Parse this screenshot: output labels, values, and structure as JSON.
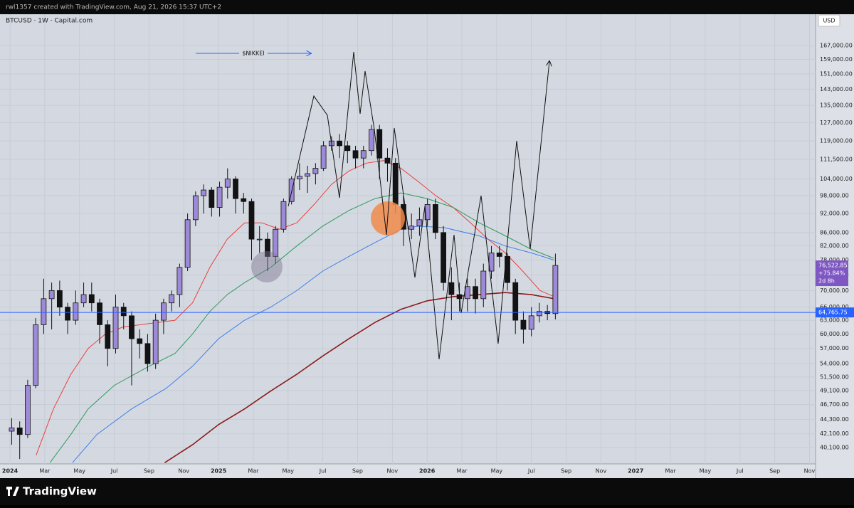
{
  "header": {
    "credit": "rwl1357 created with TradingView.com, Aug 21, 2026 15:37 UTC+2",
    "brand": "TradingView"
  },
  "chart_data": {
    "type": "candlestick",
    "title": "BTCUSD · 1W · Capital.com",
    "currency": "USD",
    "annotation": "$NIKKEI",
    "log_scale": true,
    "grid": true,
    "up_color": "#9d88da",
    "down_color": "#131313",
    "xlim": [
      -0.574,
      46.35
    ],
    "ylim": [
      37840,
      186600
    ],
    "xticks": [
      {
        "value": 0,
        "label": "2024"
      },
      {
        "value": 2,
        "label": "Mar"
      },
      {
        "value": 4,
        "label": "May"
      },
      {
        "value": 6,
        "label": "Jul"
      },
      {
        "value": 8,
        "label": "Sep"
      },
      {
        "value": 10,
        "label": "Nov"
      },
      {
        "value": 12,
        "label": "2025"
      },
      {
        "value": 14,
        "label": "Mar"
      },
      {
        "value": 16,
        "label": "May"
      },
      {
        "value": 18,
        "label": "Jul"
      },
      {
        "value": 20,
        "label": "Sep"
      },
      {
        "value": 22,
        "label": "Nov"
      },
      {
        "value": 24,
        "label": "2026"
      },
      {
        "value": 26,
        "label": "Mar"
      },
      {
        "value": 28,
        "label": "May"
      },
      {
        "value": 30,
        "label": "Jul"
      },
      {
        "value": 32,
        "label": "Sep"
      },
      {
        "value": 34,
        "label": "Nov"
      },
      {
        "value": 36,
        "label": "2027"
      },
      {
        "value": 38,
        "label": "Mar"
      },
      {
        "value": 40,
        "label": "May"
      },
      {
        "value": 42,
        "label": "Jul"
      },
      {
        "value": 44,
        "label": "Sep"
      },
      {
        "value": 46,
        "label": "Nov"
      }
    ],
    "yticks": [
      {
        "value": 40100,
        "label": "40,100.00"
      },
      {
        "value": 42100,
        "label": "42,100.00"
      },
      {
        "value": 44300,
        "label": "44,300.00"
      },
      {
        "value": 46700,
        "label": "46,700.00"
      },
      {
        "value": 49100,
        "label": "49,100.00"
      },
      {
        "value": 51500,
        "label": "51,500.00"
      },
      {
        "value": 54000,
        "label": "54,000.00"
      },
      {
        "value": 57000,
        "label": "57,000.00"
      },
      {
        "value": 60000,
        "label": "60,000.00"
      },
      {
        "value": 63000,
        "label": "63,000.00"
      },
      {
        "value": 66000,
        "label": "66,000.00"
      },
      {
        "value": 70000,
        "label": "70,000.00"
      },
      {
        "value": 74000,
        "label": "74,000.00"
      },
      {
        "value": 78000,
        "label": "78,000.00"
      },
      {
        "value": 82000,
        "label": "82,000.00"
      },
      {
        "value": 86000,
        "label": "86,000.00"
      },
      {
        "value": 92000,
        "label": "92,000.00"
      },
      {
        "value": 98000,
        "label": "98,000.00"
      },
      {
        "value": 104000,
        "label": "104,000.00"
      },
      {
        "value": 111500,
        "label": "111,500.00"
      },
      {
        "value": 119000,
        "label": "119,000.00"
      },
      {
        "value": 127000,
        "label": "127,000.00"
      },
      {
        "value": 135000,
        "label": "135,000.00"
      },
      {
        "value": 143000,
        "label": "143,000.00"
      },
      {
        "value": 151000,
        "label": "151,000.00"
      },
      {
        "value": 159000,
        "label": "159,000.00"
      },
      {
        "value": 167000,
        "label": "167,000.00"
      }
    ],
    "x": [
      0.1,
      0.56,
      1.02,
      1.48,
      1.94,
      2.4,
      2.86,
      3.32,
      3.78,
      4.24,
      4.7,
      5.16,
      5.62,
      6.08,
      6.54,
      7,
      7.46,
      7.92,
      8.38,
      8.84,
      9.3,
      9.76,
      10.22,
      10.68,
      11.14,
      11.6,
      12.06,
      12.52,
      12.98,
      13.44,
      13.9,
      14.36,
      14.82,
      15.28,
      15.74,
      16.2,
      16.66,
      17.12,
      17.58,
      18.04,
      18.5,
      18.96,
      19.42,
      19.88,
      20.34,
      20.8,
      21.26,
      21.72,
      22.18,
      22.64,
      23.1,
      23.56,
      24.02,
      24.48,
      24.94,
      25.4,
      25.86,
      26.32,
      26.78,
      27.24,
      27.7,
      28.16,
      28.62,
      29.08,
      29.54,
      30,
      30.46,
      30.92,
      31.38
    ],
    "open": [
      42500,
      43000,
      42000,
      50000,
      62000,
      68000,
      70000,
      66000,
      63000,
      67000,
      69000,
      67000,
      62000,
      57000,
      66000,
      64000,
      59000,
      58000,
      54000,
      63000,
      67000,
      69000,
      76000,
      90000,
      98000,
      100000,
      94000,
      101000,
      104000,
      97000,
      96000,
      84000,
      84000,
      79000,
      87000,
      96000,
      104000,
      105000,
      106000,
      108000,
      117000,
      119000,
      117000,
      115000,
      112000,
      115000,
      124000,
      112000,
      110000,
      95000,
      87000,
      88000,
      90000,
      95000,
      86000,
      72000,
      69000,
      68000,
      71000,
      68000,
      75000,
      80000,
      79000,
      72000,
      63000,
      61000,
      64000,
      65000,
      64500
    ],
    "high": [
      44500,
      44000,
      51000,
      63500,
      73000,
      72000,
      72500,
      67000,
      70000,
      72000,
      72000,
      68000,
      63000,
      69000,
      67000,
      65000,
      61000,
      60000,
      64500,
      68000,
      70000,
      77000,
      92000,
      99500,
      102000,
      101000,
      103000,
      108000,
      105000,
      99000,
      97000,
      88000,
      86000,
      88000,
      97000,
      105000,
      110000,
      109000,
      110000,
      119000,
      121000,
      122000,
      119000,
      117000,
      117000,
      126000,
      126000,
      116000,
      112000,
      98000,
      92000,
      94000,
      97000,
      97000,
      88000,
      76000,
      72000,
      73000,
      73000,
      77000,
      82000,
      82000,
      80000,
      73000,
      65000,
      66000,
      67000,
      66500,
      79800
    ],
    "low": [
      40500,
      38500,
      41500,
      49500,
      60000,
      61000,
      64000,
      60000,
      62000,
      66000,
      65000,
      58000,
      53500,
      56000,
      61000,
      50000,
      55000,
      52500,
      53000,
      60000,
      65000,
      66000,
      75000,
      88000,
      92000,
      91000,
      91000,
      97000,
      92000,
      92000,
      78000,
      80000,
      75000,
      77000,
      86000,
      95000,
      100000,
      99000,
      102000,
      107000,
      115000,
      112000,
      110000,
      108000,
      108000,
      113000,
      104000,
      103000,
      92000,
      82000,
      84000,
      85000,
      88000,
      84000,
      70000,
      63000,
      65000,
      65000,
      64500,
      66000,
      73000,
      76000,
      70000,
      60000,
      58000,
      59500,
      62500,
      63000,
      63200
    ],
    "close": [
      43000,
      42000,
      50000,
      62000,
      68000,
      70000,
      66000,
      63000,
      67000,
      69000,
      67000,
      62000,
      57000,
      66000,
      64000,
      59000,
      58000,
      54000,
      63000,
      67000,
      69000,
      76000,
      90000,
      98000,
      100000,
      94000,
      101000,
      104000,
      97000,
      96000,
      84000,
      84000,
      79000,
      87000,
      96000,
      104000,
      105000,
      106000,
      108000,
      117000,
      119000,
      117000,
      115000,
      112000,
      115000,
      124000,
      112000,
      110000,
      95000,
      87000,
      88000,
      90000,
      95000,
      86000,
      72000,
      69000,
      68000,
      71000,
      68000,
      75000,
      80000,
      79000,
      72000,
      63000,
      61000,
      64000,
      65000,
      64500,
      76522.85
    ],
    "lines": [
      {
        "color": "#e8413f",
        "x": [
          1.5,
          2.5,
          3.5,
          4.5,
          5.5,
          6.5,
          7.5,
          8.5,
          9.5,
          10.5,
          11.5,
          12.5,
          13.5,
          14.5,
          15.5,
          16.5,
          17.5,
          18.5,
          19.5,
          20.5,
          21.5,
          22.5,
          23.5,
          24.5,
          25.5,
          26.5,
          27.5,
          28.5,
          29.5,
          30.5,
          31.3
        ],
        "values": [
          39000,
          46000,
          52000,
          57000,
          60000,
          61500,
          62000,
          62500,
          63000,
          67000,
          76000,
          84000,
          89000,
          89000,
          87000,
          89000,
          95000,
          102000,
          107000,
          110000,
          111000,
          108000,
          103000,
          98000,
          94000,
          89000,
          84000,
          80000,
          75000,
          70000,
          68500
        ]
      },
      {
        "color": "#2e9a5e",
        "x": [
          2.3,
          3.5,
          4.5,
          6,
          8,
          9.5,
          10.5,
          11.5,
          12.5,
          13.5,
          15,
          16.5,
          18,
          19.5,
          21,
          22.5,
          24,
          25.5,
          27,
          28.5,
          30,
          31.3
        ],
        "values": [
          38000,
          42000,
          46000,
          50000,
          53500,
          56000,
          60000,
          65000,
          69000,
          72000,
          76000,
          82000,
          88000,
          93000,
          97000,
          99000,
          97000,
          94000,
          89000,
          85000,
          81000,
          78500
        ]
      },
      {
        "color": "#3f7ee8",
        "x": [
          3.6,
          5,
          7,
          9,
          10.5,
          12,
          13.5,
          15,
          16.5,
          18,
          19.5,
          21,
          22.5,
          23.5,
          25,
          27,
          28.5,
          30,
          31.3
        ],
        "values": [
          38000,
          42000,
          46000,
          49500,
          53500,
          59000,
          63000,
          66000,
          70000,
          75000,
          79000,
          83000,
          87000,
          88000,
          87500,
          85000,
          82000,
          80000,
          78000
        ]
      },
      {
        "color": "#8b1a1a",
        "x": [
          8.9,
          10.5,
          12,
          13.5,
          15,
          16.5,
          18,
          19.5,
          21,
          22.5,
          24,
          25.5,
          27,
          28.5,
          30,
          31.3
        ],
        "values": [
          38000,
          40500,
          43500,
          46000,
          49000,
          52000,
          55500,
          59000,
          62500,
          65500,
          67500,
          68500,
          69000,
          69500,
          69000,
          68000
        ]
      }
    ],
    "price_line": {
      "value": 64765.75,
      "label": "64,765.75",
      "color": "#2962ff"
    },
    "last_price": {
      "value": 76522.85,
      "label": "76,522.85",
      "change": "+75.84%",
      "countdown": "2d 8h",
      "color": "#7e57c2"
    }
  }
}
